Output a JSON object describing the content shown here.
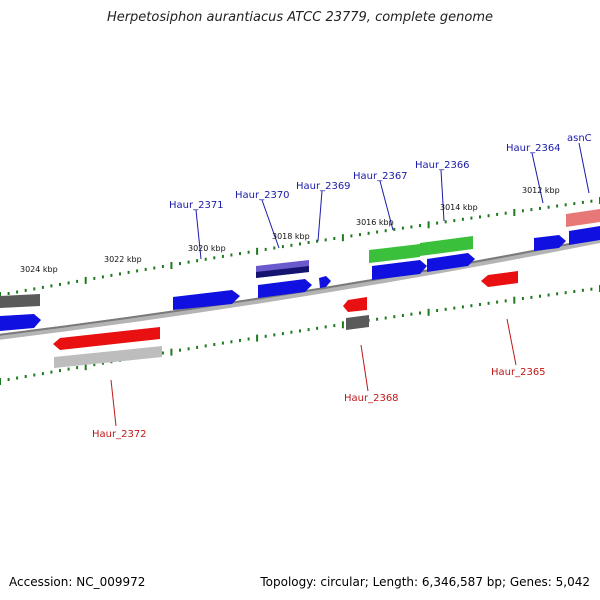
{
  "title": "Herpetosiphon aurantiacus ATCC 23779, complete genome",
  "footer": {
    "accession": "Accession: NC_009972",
    "summary": "Topology: circular; Length: 6,346,587 bp; Genes: 5,042"
  },
  "colors": {
    "backbone": "#8c8c8c",
    "tick": "#1f7a1f",
    "forward_label": "#1a1aa8",
    "reverse_label": "#c01818",
    "blue_gene": "#1010e0",
    "red_gene": "#e81010",
    "green_gene": "#3ac03a",
    "gray_gene": "#bdbdbd",
    "dark_gray_gene": "#5a5a5a",
    "purple_gene": "#6a5acd",
    "pink_gene": "#e87878"
  },
  "kbp_labels": [
    "3012 kbp",
    "3014 kbp",
    "3016 kbp",
    "3018 kbp",
    "3020 kbp",
    "3022 kbp",
    "3024 kbp"
  ],
  "forward_labels": [
    "asnC",
    "Haur_2364",
    "Haur_2366",
    "Haur_2367",
    "Haur_2369",
    "Haur_2370",
    "Haur_2371"
  ],
  "reverse_labels": [
    "Haur_2365",
    "Haur_2368",
    "Haur_2372"
  ]
}
